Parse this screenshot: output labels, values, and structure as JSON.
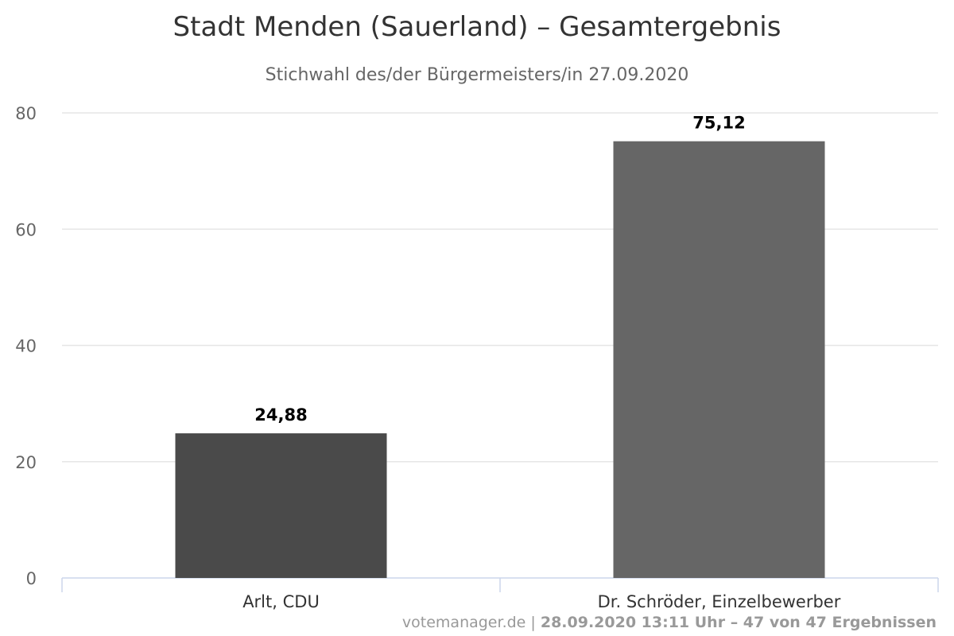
{
  "chart_data": {
    "type": "bar",
    "title": "Stadt Menden (Sauerland) – Gesamtergebnis",
    "subtitle": "Stichwahl des/der Bürgermeisters/in 27.09.2020",
    "categories": [
      "Arlt, CDU",
      "Dr. Schröder, Einzelbewerber"
    ],
    "values": [
      24.88,
      75.12
    ],
    "data_labels": [
      "24,88",
      "75,12"
    ],
    "colors": [
      "#4a4a4a",
      "#666666"
    ],
    "xlabel": "",
    "ylabel": "",
    "ylim": [
      0,
      80
    ],
    "yticks": [
      0,
      20,
      40,
      60,
      80
    ],
    "grid": true,
    "legend": "none"
  },
  "credits": {
    "source": "votemanager.de",
    "separator": " | ",
    "status": "28.09.2020 13:11 Uhr – 47 von 47 Ergebnissen"
  },
  "colors": {
    "grid": "#e6e6e6",
    "axis": "#ccd6eb",
    "tick_text": "#666666",
    "data_label": "#000000"
  }
}
